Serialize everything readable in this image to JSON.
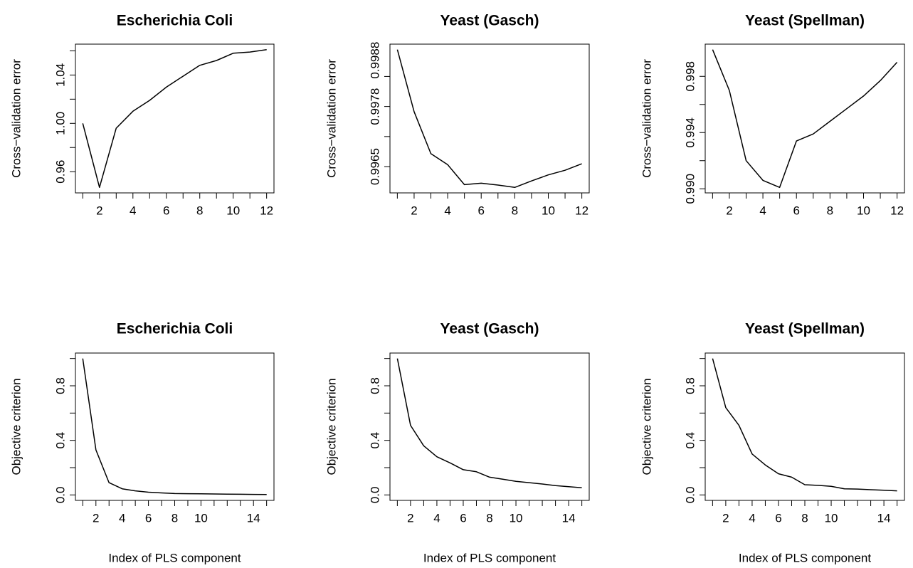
{
  "chart_data": [
    {
      "type": "line",
      "title": "Escherichia Coli",
      "xlabel": "",
      "ylabel": "Cross−validation error",
      "x": [
        1,
        2,
        3,
        4,
        5,
        6,
        7,
        8,
        9,
        10,
        11,
        12
      ],
      "series": [
        {
          "values": [
            1.0,
            0.947,
            0.996,
            1.01,
            1.019,
            1.03,
            1.039,
            1.048,
            1.052,
            1.058,
            1.059,
            1.061
          ]
        }
      ],
      "xlim": [
        1,
        12
      ],
      "ylim": [
        0.947,
        1.061
      ],
      "xticks": [
        2,
        4,
        6,
        8,
        10,
        12
      ],
      "xtick_labels": [
        "2",
        "4",
        "6",
        "8",
        "10",
        "12"
      ],
      "yticks": [
        0.96,
        1.0,
        1.04
      ],
      "ytick_labels": [
        "0.96",
        "1.00",
        "1.04"
      ],
      "grid": false
    },
    {
      "type": "line",
      "title": "Yeast (Gasch)",
      "xlabel": "",
      "ylabel": "Cross−validation error",
      "x": [
        1,
        2,
        3,
        4,
        5,
        6,
        7,
        8,
        9,
        10,
        11,
        12
      ],
      "series": [
        {
          "values": [
            0.99903,
            0.99769,
            0.99678,
            0.99654,
            0.99611,
            0.99614,
            0.9961,
            0.99605,
            0.99619,
            0.99632,
            0.99642,
            0.99656
          ]
        }
      ],
      "xlim": [
        1,
        12
      ],
      "ylim": [
        0.99605,
        0.99903
      ],
      "xticks": [
        2,
        4,
        6,
        8,
        10,
        12
      ],
      "xtick_labels": [
        "2",
        "4",
        "6",
        "8",
        "10",
        "12"
      ],
      "yticks": [
        0.9965,
        0.9978,
        0.9988
      ],
      "ytick_labels": [
        "0.9965",
        "0.9978",
        "0.9988"
      ],
      "grid": false
    },
    {
      "type": "line",
      "title": "Yeast (Spellman)",
      "xlabel": "",
      "ylabel": "Cross−validation error",
      "x": [
        1,
        2,
        3,
        4,
        5,
        6,
        7,
        8,
        9,
        10,
        11,
        12
      ],
      "series": [
        {
          "values": [
            0.9999,
            0.997,
            0.992,
            0.9906,
            0.9901,
            0.9934,
            0.9939,
            0.9948,
            0.9957,
            0.9966,
            0.9977,
            0.999
          ]
        }
      ],
      "xlim": [
        1,
        12
      ],
      "ylim": [
        0.9901,
        0.9999
      ],
      "xticks": [
        2,
        4,
        6,
        8,
        10,
        12
      ],
      "xtick_labels": [
        "2",
        "4",
        "6",
        "8",
        "10",
        "12"
      ],
      "yticks": [
        0.99,
        0.994,
        0.998
      ],
      "ytick_labels": [
        "0.990",
        "0.994",
        "0.998"
      ],
      "grid": false
    },
    {
      "type": "line",
      "title": "Escherichia Coli",
      "xlabel": "Index of PLS component",
      "ylabel": "Objective criterion",
      "x": [
        1,
        2,
        3,
        4,
        5,
        6,
        7,
        8,
        9,
        10,
        11,
        12,
        13,
        14,
        15
      ],
      "series": [
        {
          "values": [
            1.0,
            0.33,
            0.09,
            0.045,
            0.03,
            0.02,
            0.015,
            0.01,
            0.009,
            0.008,
            0.007,
            0.006,
            0.005,
            0.004,
            0.003
          ]
        }
      ],
      "xlim": [
        1,
        15
      ],
      "ylim": [
        0,
        1.0
      ],
      "xticks": [
        2,
        4,
        6,
        8,
        10,
        14
      ],
      "xtick_labels": [
        "2",
        "4",
        "6",
        "8",
        "10",
        "14"
      ],
      "yticks": [
        0.0,
        0.4,
        0.8
      ],
      "ytick_labels": [
        "0.0",
        "0.4",
        "0.8"
      ],
      "grid": false
    },
    {
      "type": "line",
      "title": "Yeast (Gasch)",
      "xlabel": "Index of PLS component",
      "ylabel": "Objective criterion",
      "x": [
        1,
        2,
        3,
        4,
        5,
        6,
        7,
        8,
        9,
        10,
        11,
        12,
        13,
        14,
        15
      ],
      "series": [
        {
          "values": [
            1.0,
            0.51,
            0.36,
            0.28,
            0.235,
            0.185,
            0.17,
            0.13,
            0.115,
            0.1,
            0.09,
            0.08,
            0.068,
            0.06,
            0.053
          ]
        }
      ],
      "xlim": [
        1,
        15
      ],
      "ylim": [
        0,
        1.0
      ],
      "xticks": [
        2,
        4,
        6,
        8,
        10,
        14
      ],
      "xtick_labels": [
        "2",
        "4",
        "6",
        "8",
        "10",
        "14"
      ],
      "yticks": [
        0.0,
        0.4,
        0.8
      ],
      "ytick_labels": [
        "0.0",
        "0.4",
        "0.8"
      ],
      "grid": false
    },
    {
      "type": "line",
      "title": "Yeast (Spellman)",
      "xlabel": "Index of PLS component",
      "ylabel": "Objective criterion",
      "x": [
        1,
        2,
        3,
        4,
        5,
        6,
        7,
        8,
        9,
        10,
        11,
        12,
        13,
        14,
        15
      ],
      "series": [
        {
          "values": [
            1.0,
            0.64,
            0.51,
            0.3,
            0.22,
            0.155,
            0.13,
            0.075,
            0.07,
            0.063,
            0.045,
            0.043,
            0.038,
            0.034,
            0.03
          ]
        }
      ],
      "xlim": [
        1,
        15
      ],
      "ylim": [
        0,
        1.0
      ],
      "xticks": [
        2,
        4,
        6,
        8,
        10,
        14
      ],
      "xtick_labels": [
        "2",
        "4",
        "6",
        "8",
        "10",
        "14"
      ],
      "yticks": [
        0.0,
        0.4,
        0.8
      ],
      "ytick_labels": [
        "0.0",
        "0.4",
        "0.8"
      ],
      "grid": false
    }
  ]
}
